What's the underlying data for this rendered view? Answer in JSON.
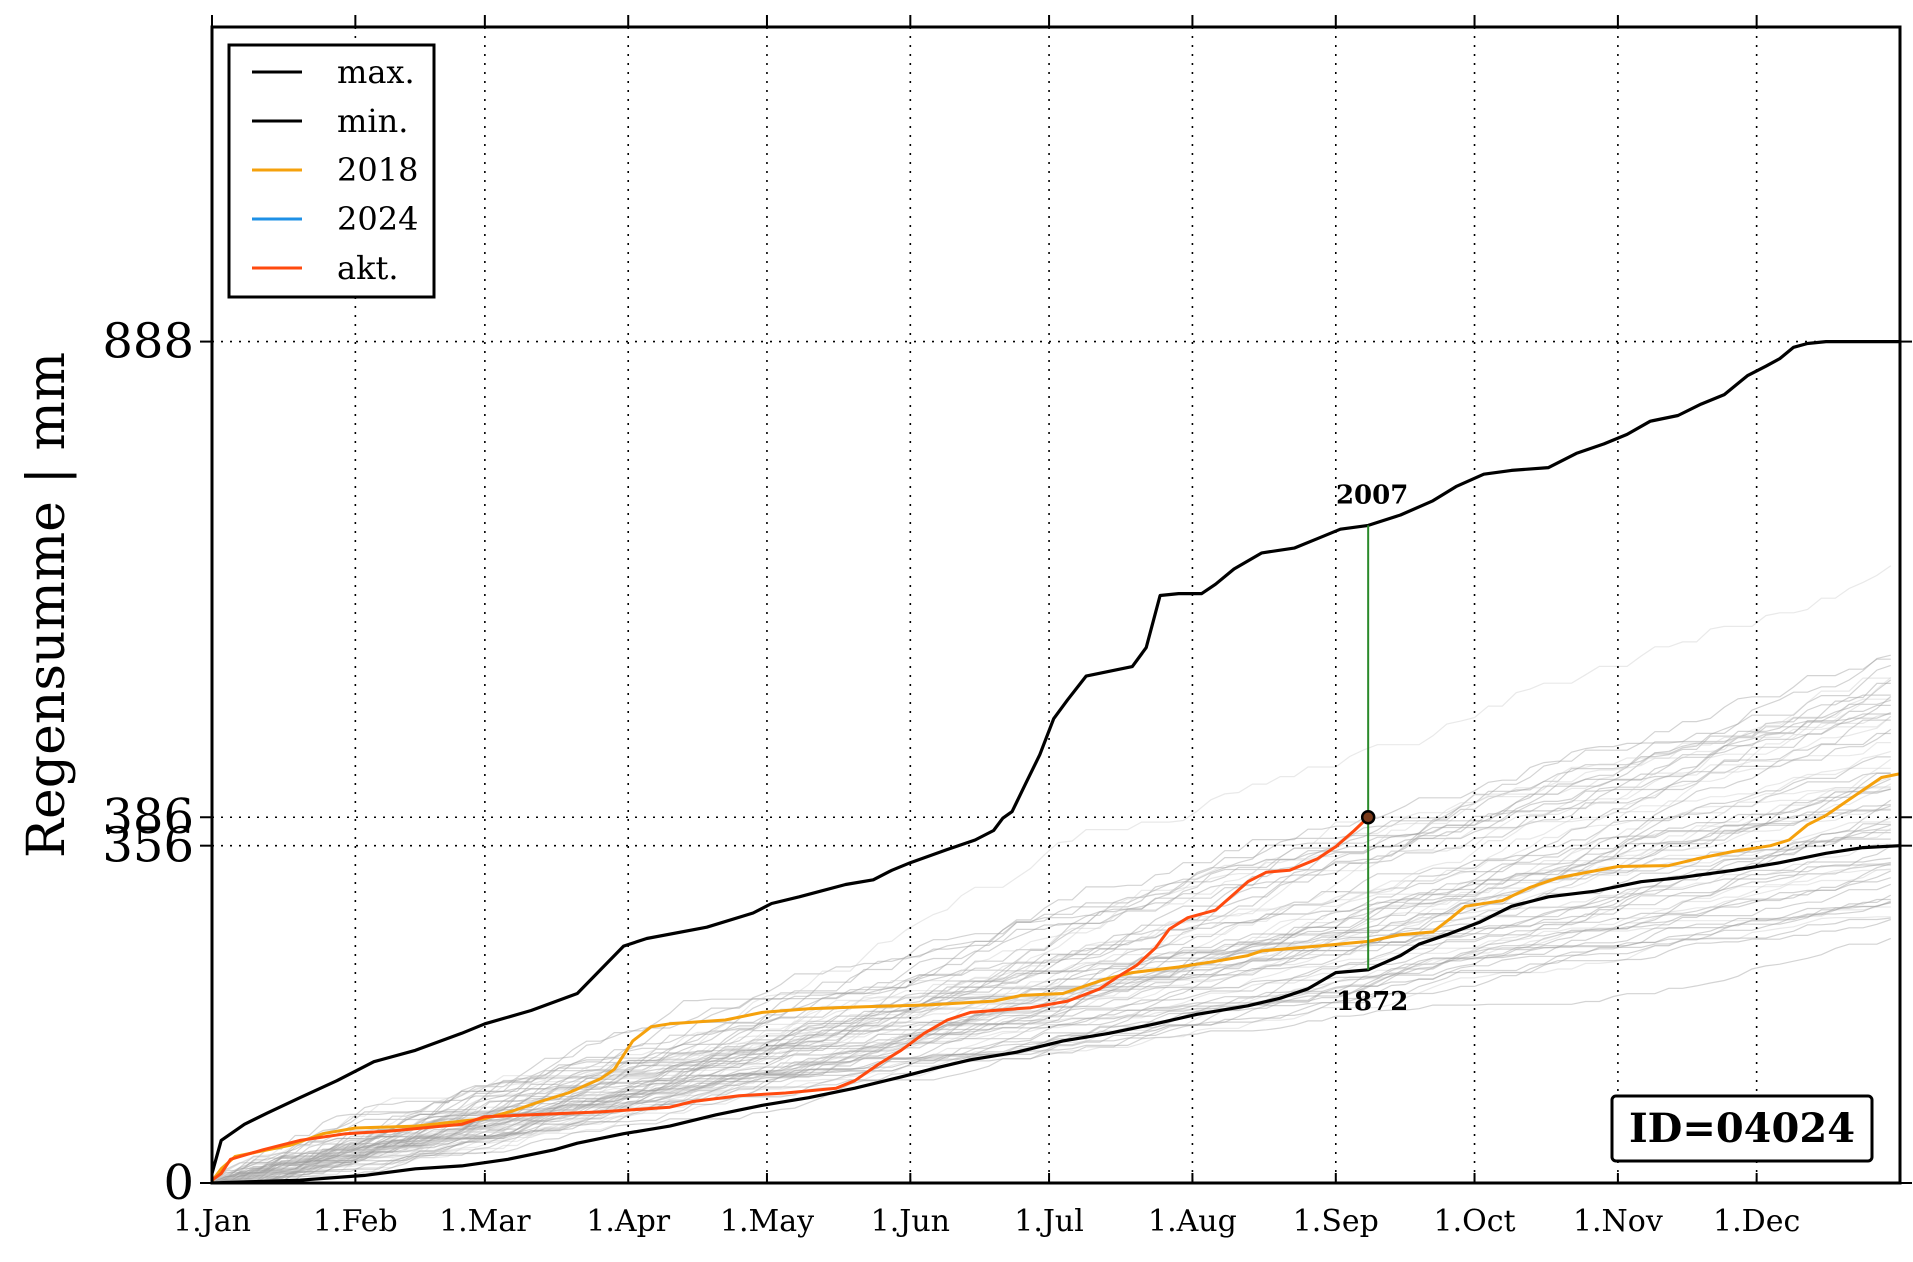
{
  "chart_data": {
    "type": "line",
    "ylabel": "Regensumme | mm",
    "xlabel": "",
    "title": "",
    "x_unit": "day of year",
    "xlim": [
      1,
      366
    ],
    "ylim": [
      0,
      1220
    ],
    "grid": true,
    "legend_position": "top-left",
    "id_label": "ID=04024",
    "month_ticks": [
      {
        "label": "1.Jan",
        "day": 1
      },
      {
        "label": "1.Feb",
        "day": 32
      },
      {
        "label": "1.Mar",
        "day": 60
      },
      {
        "label": "1.Apr",
        "day": 91
      },
      {
        "label": "1.May",
        "day": 121
      },
      {
        "label": "1.Jun",
        "day": 152
      },
      {
        "label": "1.Jul",
        "day": 182
      },
      {
        "label": "1.Aug",
        "day": 213
      },
      {
        "label": "1.Sep",
        "day": 244
      },
      {
        "label": "1.Oct",
        "day": 274
      },
      {
        "label": "1.Nov",
        "day": 305
      },
      {
        "label": "1.Dec",
        "day": 335
      }
    ],
    "y_ticks": [
      {
        "label": "0",
        "value": 0
      },
      {
        "label": "356",
        "value": 356
      },
      {
        "label": "386",
        "value": 386
      },
      {
        "label": "888",
        "value": 888
      }
    ],
    "reference_lines": [
      888,
      386,
      356
    ],
    "current_marker": {
      "day": 251,
      "value": 386
    },
    "annotations": [
      {
        "label": "2007",
        "day": 251,
        "value": 694
      },
      {
        "label": "1872",
        "day": 251,
        "value": 225
      }
    ],
    "legend": [
      {
        "name": "max.",
        "color": "#000000"
      },
      {
        "name": "min.",
        "color": "#000000"
      },
      {
        "name": "2018",
        "color": "#f5a10c"
      },
      {
        "name": "2024",
        "color": "#1e90e6"
      },
      {
        "name": "akt.",
        "color": "#ff4a0f"
      }
    ],
    "series": [
      {
        "name": "max.",
        "color": "#000000",
        "points": [
          [
            1,
            10
          ],
          [
            3,
            45
          ],
          [
            8,
            62
          ],
          [
            13,
            74
          ],
          [
            20,
            90
          ],
          [
            28,
            108
          ],
          [
            36,
            128
          ],
          [
            45,
            140
          ],
          [
            55,
            158
          ],
          [
            60,
            168
          ],
          [
            70,
            182
          ],
          [
            80,
            200
          ],
          [
            85,
            225
          ],
          [
            90,
            250
          ],
          [
            95,
            258
          ],
          [
            108,
            270
          ],
          [
            118,
            285
          ],
          [
            122,
            295
          ],
          [
            128,
            302
          ],
          [
            138,
            315
          ],
          [
            144,
            320
          ],
          [
            148,
            330
          ],
          [
            152,
            338
          ],
          [
            160,
            352
          ],
          [
            166,
            362
          ],
          [
            170,
            372
          ],
          [
            172,
            385
          ],
          [
            174,
            392
          ],
          [
            177,
            422
          ],
          [
            180,
            452
          ],
          [
            183,
            490
          ],
          [
            186,
            510
          ],
          [
            190,
            535
          ],
          [
            195,
            540
          ],
          [
            200,
            545
          ],
          [
            203,
            565
          ],
          [
            206,
            620
          ],
          [
            210,
            622
          ],
          [
            215,
            622
          ],
          [
            218,
            632
          ],
          [
            222,
            648
          ],
          [
            228,
            665
          ],
          [
            235,
            670
          ],
          [
            240,
            680
          ],
          [
            245,
            690
          ],
          [
            251,
            694
          ],
          [
            258,
            705
          ],
          [
            265,
            720
          ],
          [
            270,
            735
          ],
          [
            276,
            748
          ],
          [
            282,
            752
          ],
          [
            290,
            755
          ],
          [
            296,
            770
          ],
          [
            302,
            780
          ],
          [
            307,
            790
          ],
          [
            312,
            804
          ],
          [
            318,
            810
          ],
          [
            323,
            822
          ],
          [
            328,
            832
          ],
          [
            333,
            852
          ],
          [
            337,
            862
          ],
          [
            340,
            870
          ],
          [
            343,
            882
          ],
          [
            346,
            886
          ],
          [
            350,
            888
          ],
          [
            366,
            888
          ]
        ]
      },
      {
        "name": "min.",
        "color": "#000000",
        "points": [
          [
            1,
            0
          ],
          [
            20,
            3
          ],
          [
            34,
            8
          ],
          [
            45,
            15
          ],
          [
            55,
            18
          ],
          [
            65,
            25
          ],
          [
            75,
            35
          ],
          [
            80,
            42
          ],
          [
            90,
            52
          ],
          [
            100,
            60
          ],
          [
            110,
            72
          ],
          [
            120,
            82
          ],
          [
            130,
            90
          ],
          [
            140,
            100
          ],
          [
            150,
            112
          ],
          [
            158,
            122
          ],
          [
            165,
            130
          ],
          [
            175,
            138
          ],
          [
            185,
            150
          ],
          [
            195,
            158
          ],
          [
            205,
            168
          ],
          [
            214,
            178
          ],
          [
            225,
            187
          ],
          [
            232,
            195
          ],
          [
            238,
            205
          ],
          [
            244,
            222
          ],
          [
            251,
            225
          ],
          [
            258,
            240
          ],
          [
            262,
            252
          ],
          [
            268,
            262
          ],
          [
            275,
            275
          ],
          [
            282,
            292
          ],
          [
            290,
            302
          ],
          [
            300,
            308
          ],
          [
            310,
            318
          ],
          [
            318,
            322
          ],
          [
            330,
            330
          ],
          [
            340,
            338
          ],
          [
            350,
            348
          ],
          [
            358,
            354
          ],
          [
            366,
            356
          ]
        ]
      },
      {
        "name": "2018",
        "color": "#f5a10c",
        "points": [
          [
            1,
            2
          ],
          [
            3,
            15
          ],
          [
            6,
            28
          ],
          [
            12,
            34
          ],
          [
            18,
            40
          ],
          [
            25,
            52
          ],
          [
            32,
            58
          ],
          [
            45,
            60
          ],
          [
            60,
            68
          ],
          [
            66,
            76
          ],
          [
            72,
            86
          ],
          [
            78,
            95
          ],
          [
            85,
            110
          ],
          [
            88,
            120
          ],
          [
            92,
            150
          ],
          [
            96,
            165
          ],
          [
            100,
            168
          ],
          [
            112,
            172
          ],
          [
            120,
            180
          ],
          [
            130,
            184
          ],
          [
            142,
            186
          ],
          [
            156,
            188
          ],
          [
            170,
            192
          ],
          [
            176,
            198
          ],
          [
            185,
            200
          ],
          [
            194,
            215
          ],
          [
            200,
            222
          ],
          [
            210,
            228
          ],
          [
            218,
            234
          ],
          [
            225,
            240
          ],
          [
            228,
            245
          ],
          [
            240,
            250
          ],
          [
            251,
            255
          ],
          [
            258,
            262
          ],
          [
            265,
            265
          ],
          [
            269,
            280
          ],
          [
            272,
            292
          ],
          [
            280,
            298
          ],
          [
            286,
            312
          ],
          [
            292,
            322
          ],
          [
            305,
            334
          ],
          [
            316,
            335
          ],
          [
            322,
            342
          ],
          [
            330,
            350
          ],
          [
            338,
            356
          ],
          [
            342,
            362
          ],
          [
            346,
            378
          ],
          [
            350,
            388
          ],
          [
            356,
            408
          ],
          [
            362,
            428
          ],
          [
            366,
            432
          ]
        ]
      },
      {
        "name": "akt.",
        "color": "#ff4a0f",
        "points": [
          [
            1,
            3
          ],
          [
            3,
            10
          ],
          [
            5,
            25
          ],
          [
            12,
            35
          ],
          [
            20,
            45
          ],
          [
            30,
            52
          ],
          [
            40,
            55
          ],
          [
            55,
            62
          ],
          [
            60,
            70
          ],
          [
            70,
            72
          ],
          [
            85,
            75
          ],
          [
            100,
            80
          ],
          [
            105,
            86
          ],
          [
            115,
            92
          ],
          [
            125,
            95
          ],
          [
            136,
            100
          ],
          [
            140,
            108
          ],
          [
            145,
            125
          ],
          [
            150,
            140
          ],
          [
            155,
            158
          ],
          [
            160,
            172
          ],
          [
            165,
            180
          ],
          [
            170,
            182
          ],
          [
            178,
            185
          ],
          [
            186,
            192
          ],
          [
            193,
            205
          ],
          [
            197,
            218
          ],
          [
            201,
            230
          ],
          [
            205,
            248
          ],
          [
            208,
            268
          ],
          [
            212,
            280
          ],
          [
            218,
            288
          ],
          [
            222,
            305
          ],
          [
            225,
            318
          ],
          [
            229,
            328
          ],
          [
            234,
            330
          ],
          [
            240,
            342
          ],
          [
            244,
            355
          ],
          [
            248,
            372
          ],
          [
            251,
            386
          ]
        ]
      }
    ]
  }
}
